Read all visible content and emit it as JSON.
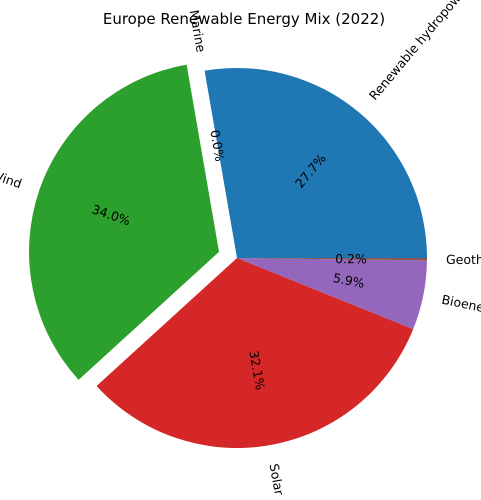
{
  "chart_data": {
    "type": "pie",
    "title": "Europe Renewable Energy Mix (2022)",
    "start_angle_deg": 0,
    "counterclock": true,
    "exploded": [
      "Wind"
    ],
    "slices": [
      {
        "label": "Renewable hydropower",
        "value": 27.7,
        "pct_text": "27.7%",
        "color": "#1f77b4"
      },
      {
        "label": "Marine",
        "value": 0.0,
        "pct_text": "0.0%",
        "color": "#ff7f0e"
      },
      {
        "label": "Wind",
        "value": 34.0,
        "pct_text": "34.0%",
        "color": "#2ca02c"
      },
      {
        "label": "Solar",
        "value": 32.1,
        "pct_text": "32.1%",
        "color": "#d62728"
      },
      {
        "label": "Bioenergy",
        "value": 5.9,
        "pct_text": "5.9%",
        "color": "#9467bd"
      },
      {
        "label": "Geothermal",
        "value": 0.2,
        "pct_text": "0.2%",
        "color": "#8c564b"
      }
    ]
  }
}
